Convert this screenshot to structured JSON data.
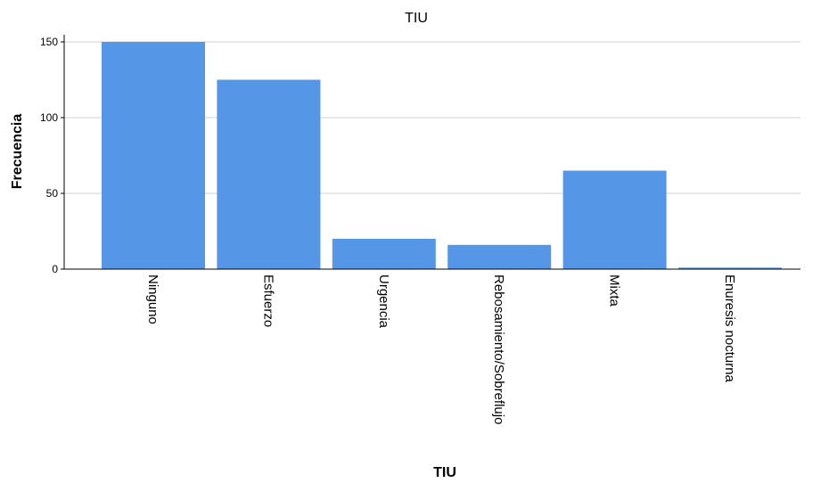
{
  "chart_data": {
    "type": "bar",
    "title": "TIU",
    "xlabel": "TIU",
    "ylabel": "Frecuencia",
    "categories": [
      "Ninguno",
      "Esfuerzo",
      "Urgencia",
      "Rebosamiento/Sobreflujo",
      "Mixta",
      "Enuresis nocturna"
    ],
    "values": [
      150,
      125,
      20,
      16,
      65,
      1
    ],
    "ylim": [
      0,
      150
    ],
    "yticks": [
      "0",
      "50",
      "100",
      "150"
    ],
    "grid": true,
    "bar_color": "#5596e6",
    "grid_color": "#d9d9d9"
  }
}
